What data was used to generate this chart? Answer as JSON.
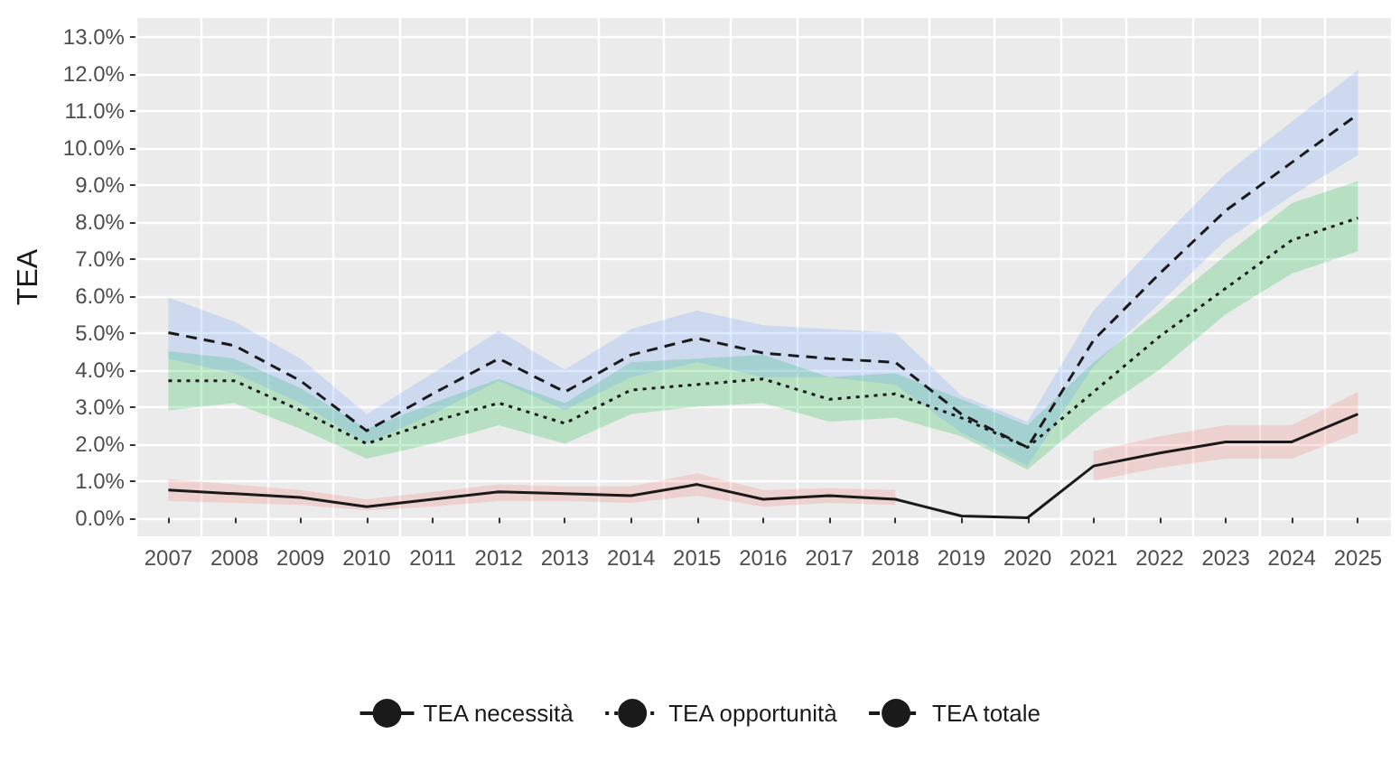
{
  "chart_data": {
    "type": "line",
    "ylabel": "TEA",
    "categories": [
      "2007",
      "2008",
      "2009",
      "2010",
      "2011",
      "2012",
      "2013",
      "2014",
      "2015",
      "2016",
      "2017",
      "2018",
      "2019",
      "2020",
      "2021",
      "2022",
      "2023",
      "2024",
      "2025"
    ],
    "series": [
      {
        "name": "TEA necessità",
        "color": "#1a1a1a",
        "line_style": "solid",
        "values": [
          0.75,
          0.65,
          0.55,
          0.3,
          0.5,
          0.7,
          0.65,
          0.6,
          0.9,
          0.5,
          0.6,
          0.5,
          0.05,
          0.0,
          1.4,
          1.75,
          2.05,
          2.05,
          2.8
        ],
        "lower": [
          0.45,
          0.4,
          0.35,
          0.2,
          0.3,
          0.45,
          0.45,
          0.4,
          0.6,
          0.3,
          0.4,
          0.35,
          null,
          null,
          1.0,
          1.35,
          1.6,
          1.6,
          2.3
        ],
        "upper": [
          1.05,
          0.9,
          0.75,
          0.5,
          0.7,
          0.9,
          0.85,
          0.85,
          1.2,
          0.75,
          0.8,
          0.75,
          null,
          null,
          1.8,
          2.2,
          2.5,
          2.5,
          3.4
        ]
      },
      {
        "name": "TEA opportunità",
        "color": "#1a1a1a",
        "line_style": "dotted",
        "values": [
          3.7,
          3.7,
          2.9,
          2.0,
          2.6,
          3.1,
          2.55,
          3.45,
          3.6,
          3.75,
          3.2,
          3.35,
          2.7,
          1.9,
          3.4,
          4.9,
          6.2,
          7.5,
          8.1
        ],
        "lower": [
          2.9,
          3.1,
          2.4,
          1.6,
          2.0,
          2.5,
          2.0,
          2.8,
          3.0,
          3.1,
          2.6,
          2.7,
          2.2,
          1.3,
          2.8,
          4.0,
          5.5,
          6.6,
          7.2
        ],
        "upper": [
          4.5,
          4.3,
          3.5,
          2.4,
          3.1,
          3.75,
          3.1,
          4.2,
          4.3,
          4.4,
          3.8,
          3.9,
          3.2,
          2.5,
          4.2,
          5.6,
          7.1,
          8.5,
          9.1
        ]
      },
      {
        "name": "TEA totale",
        "color": "#1a1a1a",
        "line_style": "dashed",
        "values": [
          5.0,
          4.65,
          3.7,
          2.35,
          3.35,
          4.3,
          3.4,
          4.4,
          4.85,
          4.45,
          4.3,
          4.2,
          2.8,
          1.9,
          4.8,
          6.6,
          8.3,
          9.6,
          10.9
        ],
        "lower": [
          4.3,
          3.9,
          3.1,
          2.0,
          2.8,
          3.7,
          2.9,
          3.8,
          4.2,
          3.8,
          3.8,
          3.6,
          2.3,
          1.4,
          4.1,
          5.8,
          7.5,
          8.7,
          9.8
        ],
        "upper": [
          5.95,
          5.3,
          4.3,
          2.8,
          3.9,
          5.05,
          4.0,
          5.1,
          5.6,
          5.2,
          5.1,
          5.0,
          3.3,
          2.6,
          5.6,
          7.5,
          9.3,
          10.7,
          12.1
        ]
      }
    ],
    "ylim": [
      -0.5,
      13.5
    ],
    "yticks": [
      {
        "value": 0,
        "label": "0.0%"
      },
      {
        "value": 1,
        "label": "1.0%"
      },
      {
        "value": 2,
        "label": "2.0%"
      },
      {
        "value": 3,
        "label": "3.0%"
      },
      {
        "value": 4,
        "label": "4.0%"
      },
      {
        "value": 5,
        "label": "5.0%"
      },
      {
        "value": 6,
        "label": "6.0%"
      },
      {
        "value": 7,
        "label": "7.0%"
      },
      {
        "value": 8,
        "label": "8.0%"
      },
      {
        "value": 9,
        "label": "9.0%"
      },
      {
        "value": 10,
        "label": "10.0%"
      },
      {
        "value": 11,
        "label": "11.0%"
      },
      {
        "value": 12,
        "label": "12.0%"
      },
      {
        "value": 13,
        "label": "13.0%"
      }
    ],
    "grid": true,
    "legend": "bottom",
    "marker": "none"
  }
}
